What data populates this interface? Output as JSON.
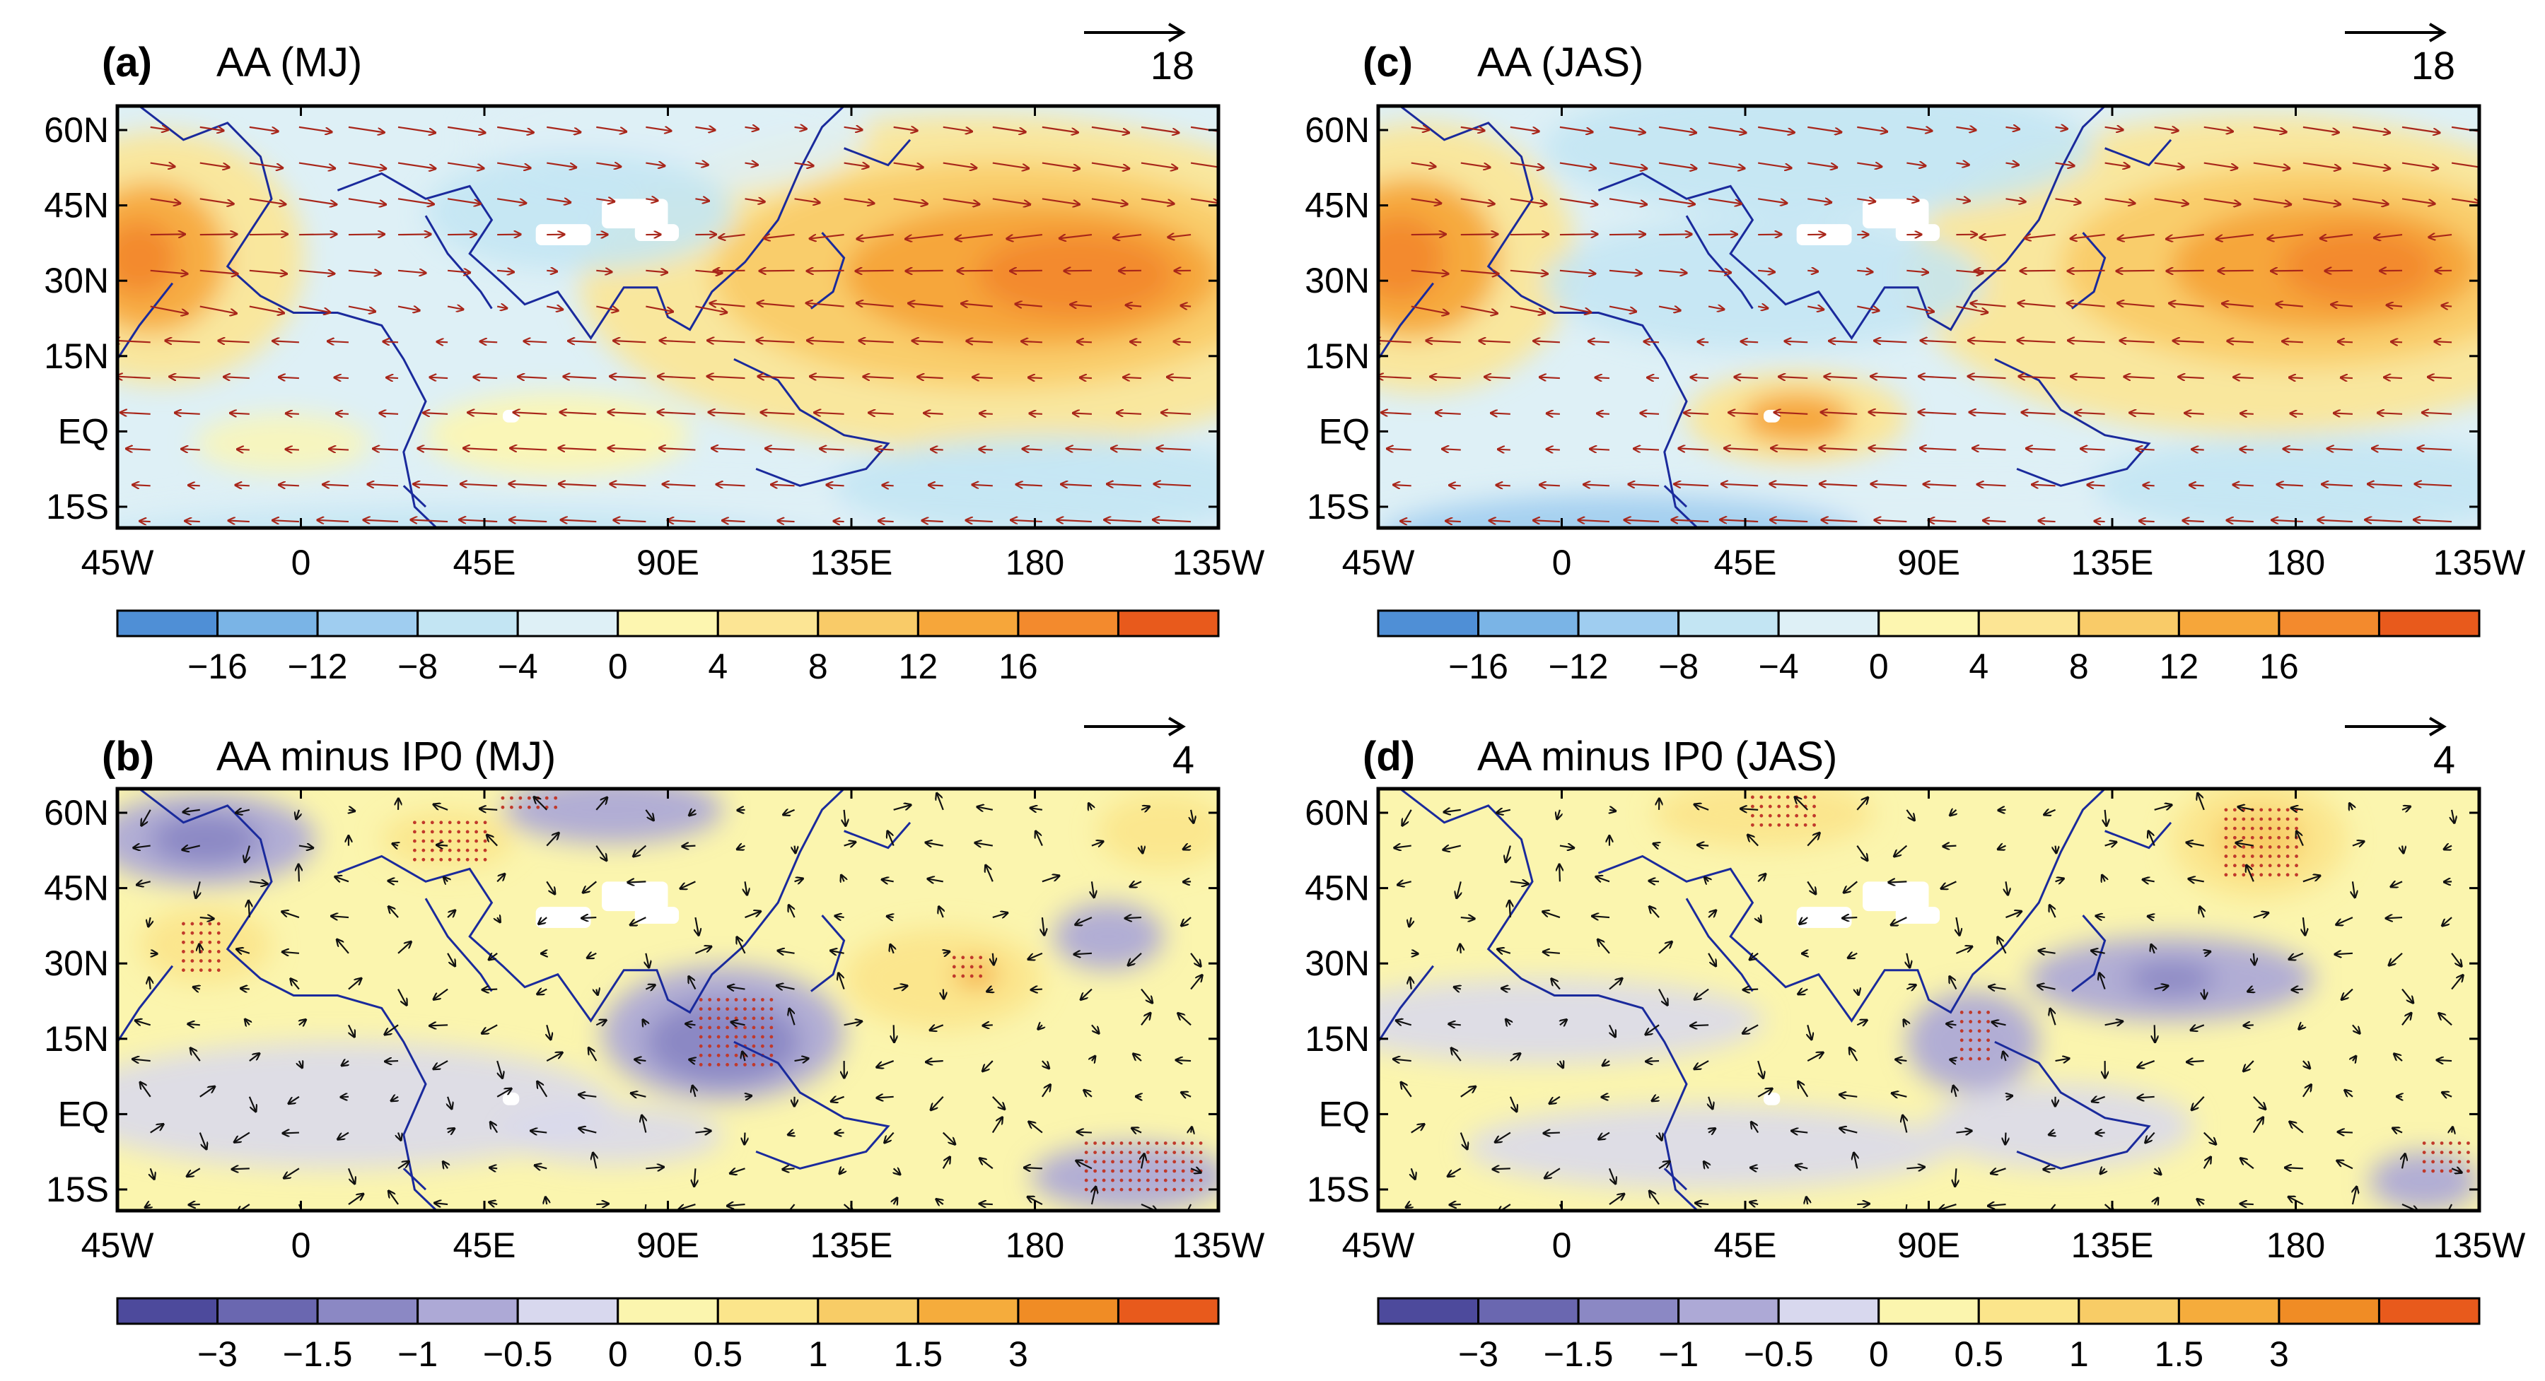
{
  "figure": {
    "axis": {
      "x_ticks": [
        "45W",
        "0",
        "45E",
        "90E",
        "135E",
        "180",
        "135W"
      ],
      "y_ticks": [
        "60N",
        "45N",
        "30N",
        "15N",
        "EQ",
        "15S"
      ]
    },
    "colors": {
      "coast": "#1a2a9c",
      "wind_red": "#a8261a",
      "wind_black": "#111111",
      "stipple": "#c0392b",
      "land_mask": "#ffffff"
    },
    "panels": [
      {
        "id": "a",
        "letter": "(a)",
        "title": "AA  (MJ)",
        "ref_vector": "18",
        "wind_color_key": "wind_red",
        "colorbar": {
          "colors": [
            "#4f8fd6",
            "#7ab4e6",
            "#9fcdf0",
            "#c3e5f3",
            "#def0f6",
            "#fdf6b0",
            "#fce594",
            "#f9cb68",
            "#f6a63a",
            "#f38a2d",
            "#e85a1c"
          ],
          "labels": [
            "−16",
            "−12",
            "−8",
            "−4",
            "0",
            "4",
            "8",
            "12",
            "16"
          ]
        }
      },
      {
        "id": "c",
        "letter": "(c)",
        "title": "AA  (JAS)",
        "ref_vector": "18",
        "wind_color_key": "wind_red",
        "colorbar": {
          "colors": [
            "#4f8fd6",
            "#7ab4e6",
            "#9fcdf0",
            "#c3e5f3",
            "#def0f6",
            "#fdf6b0",
            "#fce594",
            "#f9cb68",
            "#f6a63a",
            "#f38a2d",
            "#e85a1c"
          ],
          "labels": [
            "−16",
            "−12",
            "−8",
            "−4",
            "0",
            "4",
            "8",
            "12",
            "16"
          ]
        }
      },
      {
        "id": "b",
        "letter": "(b)",
        "title": "AA minus IP0  (MJ)",
        "ref_vector": "4",
        "wind_color_key": "wind_black",
        "colorbar": {
          "colors": [
            "#4d4a9c",
            "#6a67b0",
            "#8b88c4",
            "#ada9d6",
            "#d8d8ee",
            "#fbf5ae",
            "#fbe58b",
            "#f8cc66",
            "#f5ac3c",
            "#f08c25",
            "#e85a1c"
          ],
          "labels": [
            "−3",
            "−1.5",
            "−1",
            "−0.5",
            "0",
            "0.5",
            "1",
            "1.5",
            "3"
          ]
        }
      },
      {
        "id": "d",
        "letter": "(d)",
        "title": "AA minus IP0  (JAS)",
        "ref_vector": "4",
        "wind_color_key": "wind_black",
        "colorbar": {
          "colors": [
            "#4d4a9c",
            "#6a67b0",
            "#8b88c4",
            "#ada9d6",
            "#d8d8ee",
            "#fbf5ae",
            "#fbe58b",
            "#f8cc66",
            "#f5ac3c",
            "#f08c25",
            "#e85a1c"
          ],
          "labels": [
            "−3",
            "−1.5",
            "−1",
            "−0.5",
            "0",
            "0.5",
            "1",
            "1.5",
            "3"
          ]
        }
      }
    ]
  }
}
